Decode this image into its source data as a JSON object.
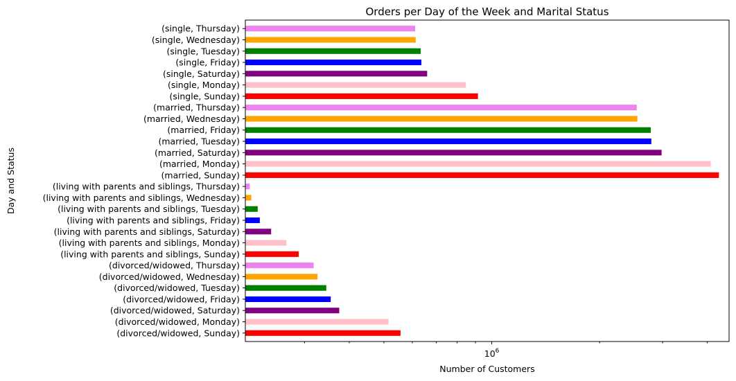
{
  "chart_data": {
    "type": "bar",
    "orientation": "horizontal",
    "title": "Orders per Day of the Week and Marital Status",
    "xlabel": "Number of Customers",
    "ylabel": "Day and Status",
    "x_scale": "log",
    "xlim": [
      205000,
      4600000
    ],
    "x_major_tick": {
      "value": 1000000,
      "base": "10",
      "exponent": "6"
    },
    "x_minor_ticks": [
      300000,
      400000,
      500000,
      600000,
      700000,
      800000,
      900000,
      2000000,
      3000000,
      4000000
    ],
    "grid": false,
    "legend": "none",
    "categories": [
      "(divorced/widowed, Sunday)",
      "(divorced/widowed, Monday)",
      "(divorced/widowed, Saturday)",
      "(divorced/widowed, Friday)",
      "(divorced/widowed, Tuesday)",
      "(divorced/widowed, Wednesday)",
      "(divorced/widowed, Thursday)",
      "(living with parents and siblings, Sunday)",
      "(living with parents and siblings, Monday)",
      "(living with parents and siblings, Saturday)",
      "(living with parents and siblings, Friday)",
      "(living with parents and siblings, Tuesday)",
      "(living with parents and siblings, Wednesday)",
      "(living with parents and siblings, Thursday)",
      "(married, Sunday)",
      "(married, Monday)",
      "(married, Saturday)",
      "(married, Tuesday)",
      "(married, Friday)",
      "(married, Wednesday)",
      "(married, Thursday)",
      "(single, Sunday)",
      "(single, Monday)",
      "(single, Saturday)",
      "(single, Friday)",
      "(single, Tuesday)",
      "(single, Wednesday)",
      "(single, Thursday)"
    ],
    "values": [
      556000,
      515000,
      375000,
      355000,
      345000,
      326000,
      318000,
      289000,
      267000,
      242000,
      225000,
      222000,
      213000,
      211000,
      4310000,
      4090000,
      2980000,
      2790000,
      2780000,
      2550000,
      2540000,
      915000,
      847000,
      660000,
      636000,
      633000,
      613000,
      611000
    ],
    "colors": [
      "#ff0000",
      "#ffc0cb",
      "#800080",
      "#0000ff",
      "#008000",
      "#ffa500",
      "#ee82ee",
      "#ff0000",
      "#ffc0cb",
      "#800080",
      "#0000ff",
      "#008000",
      "#ffa500",
      "#ee82ee",
      "#ff0000",
      "#ffc0cb",
      "#800080",
      "#0000ff",
      "#008000",
      "#ffa500",
      "#ee82ee",
      "#ff0000",
      "#ffc0cb",
      "#800080",
      "#0000ff",
      "#008000",
      "#ffa500",
      "#ee82ee"
    ]
  }
}
